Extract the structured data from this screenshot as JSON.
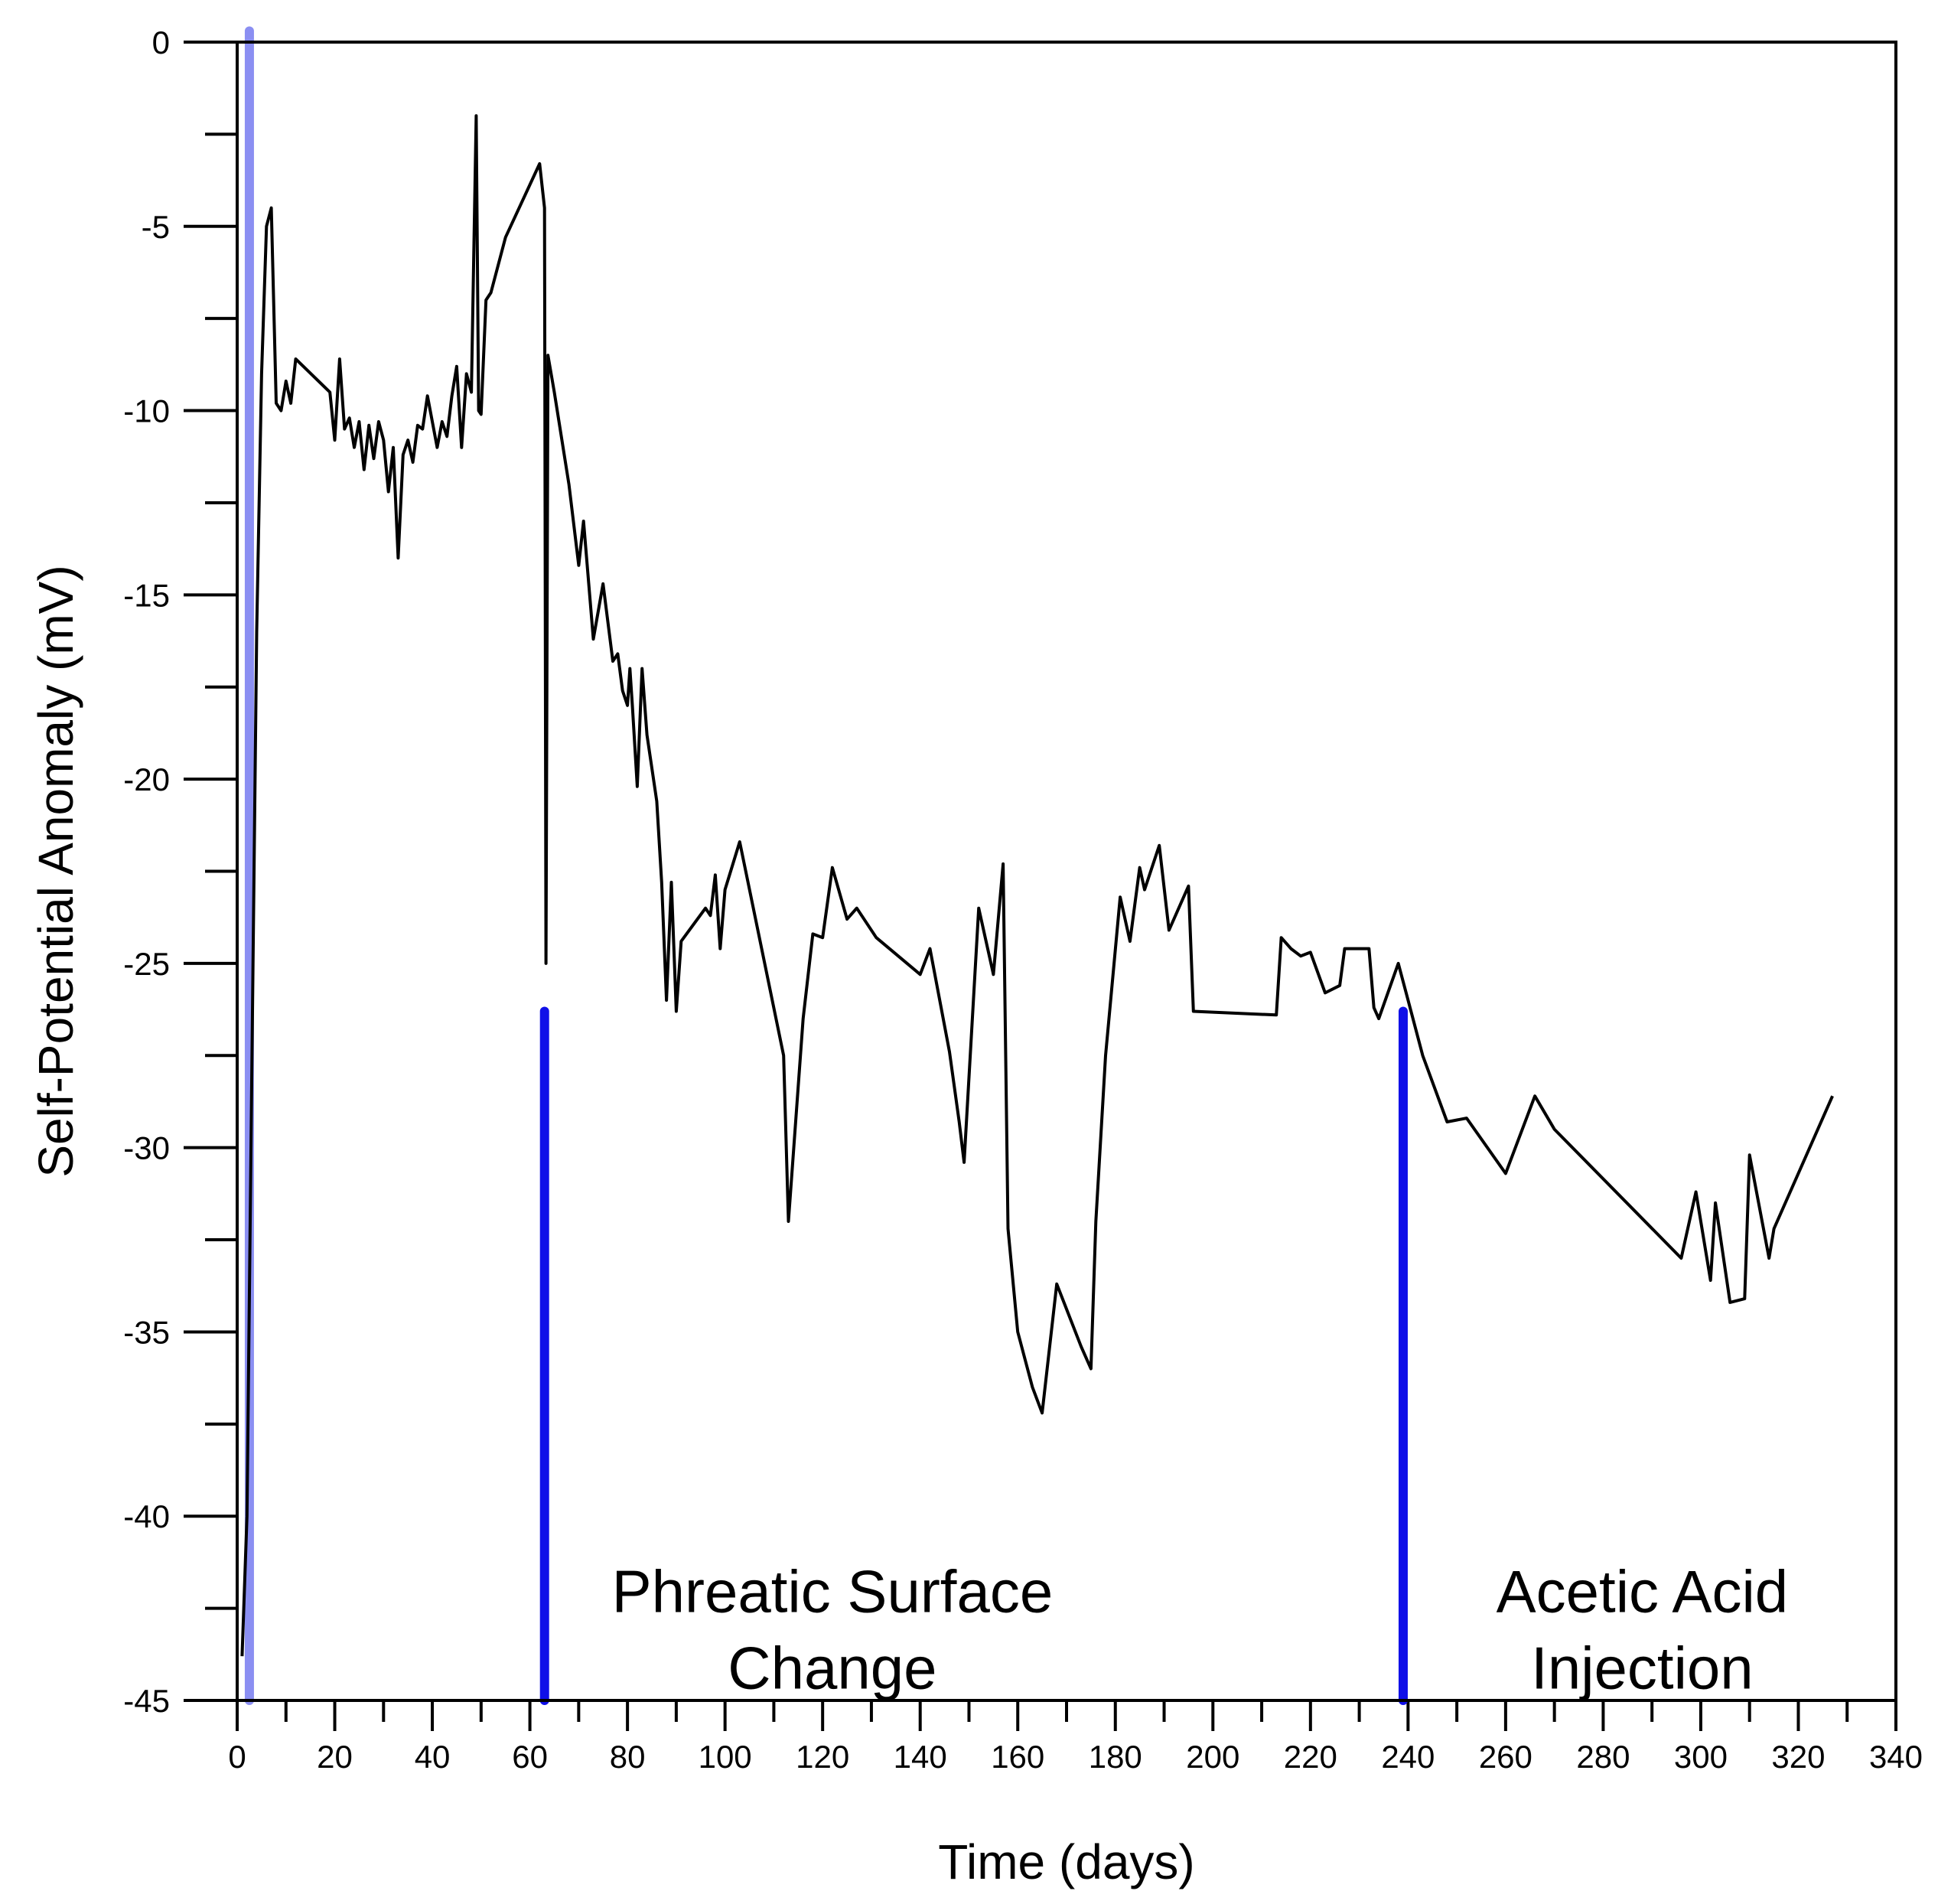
{
  "chart_data": {
    "type": "line",
    "title": "",
    "xlabel": "Time (days)",
    "ylabel": "Self-Potential Anomaly (mV)",
    "xlim": [
      0,
      340
    ],
    "ylim": [
      -45,
      0
    ],
    "x_ticks": [
      0,
      20,
      40,
      60,
      80,
      100,
      120,
      140,
      160,
      180,
      200,
      220,
      240,
      260,
      280,
      300,
      320,
      340
    ],
    "x_tick_labels": [
      "0",
      "20",
      "40",
      "60",
      "80",
      "100",
      "120",
      "140",
      "160",
      "180",
      "200",
      "220",
      "240",
      "260",
      "280",
      "300",
      "320",
      "340"
    ],
    "y_ticks": [
      0,
      -5,
      -10,
      -15,
      -20,
      -25,
      -30,
      -35,
      -40,
      -45
    ],
    "y_tick_labels": [
      "0",
      "-5",
      "-10",
      "-15",
      "-20",
      "-25",
      "-30",
      "-35",
      "-40",
      "-45"
    ],
    "grid": false,
    "series": [
      {
        "color": "#000000",
        "points": [
          [
            1,
            -43.8
          ],
          [
            2,
            -40
          ],
          [
            3,
            -28
          ],
          [
            4,
            -16
          ],
          [
            5,
            -9
          ],
          [
            6,
            -5
          ],
          [
            7,
            -4.5
          ],
          [
            8,
            -9.8
          ],
          [
            9,
            -10
          ],
          [
            10,
            -9.2
          ],
          [
            11,
            -9.8
          ],
          [
            12,
            -8.6
          ],
          [
            19,
            -9.5
          ],
          [
            20,
            -10.8
          ],
          [
            21,
            -8.6
          ],
          [
            22,
            -10.5
          ],
          [
            23,
            -10.2
          ],
          [
            24,
            -11
          ],
          [
            25,
            -10.3
          ],
          [
            26,
            -11.6
          ],
          [
            27,
            -10.4
          ],
          [
            28,
            -11.3
          ],
          [
            29,
            -10.3
          ],
          [
            30,
            -10.8
          ],
          [
            31,
            -12.2
          ],
          [
            32,
            -11
          ],
          [
            33,
            -14
          ],
          [
            34,
            -11.2
          ],
          [
            35,
            -10.8
          ],
          [
            36,
            -11.4
          ],
          [
            37,
            -10.4
          ],
          [
            38,
            -10.5
          ],
          [
            39,
            -9.6
          ],
          [
            41,
            -11
          ],
          [
            42,
            -10.3
          ],
          [
            43,
            -10.7
          ],
          [
            44,
            -9.6
          ],
          [
            45,
            -8.8
          ],
          [
            46,
            -11
          ],
          [
            47,
            -9
          ],
          [
            48,
            -9.5
          ],
          [
            49,
            -2
          ],
          [
            49.5,
            -10
          ],
          [
            50,
            -10.1
          ],
          [
            51,
            -7
          ],
          [
            52,
            -6.8
          ],
          [
            55,
            -5.3
          ],
          [
            62,
            -3.3
          ],
          [
            63,
            -4.5
          ],
          [
            63.3,
            -25
          ],
          [
            63.7,
            -8.5
          ],
          [
            65,
            -9.5
          ],
          [
            68,
            -12
          ],
          [
            70,
            -14.2
          ],
          [
            71,
            -13
          ],
          [
            73,
            -16.2
          ],
          [
            75,
            -14.7
          ],
          [
            77,
            -16.8
          ],
          [
            78,
            -16.6
          ],
          [
            79,
            -17.6
          ],
          [
            80,
            -18
          ],
          [
            80.5,
            -17
          ],
          [
            81,
            -18
          ],
          [
            82,
            -20.2
          ],
          [
            83,
            -17
          ],
          [
            84,
            -18.8
          ],
          [
            86,
            -20.6
          ],
          [
            87,
            -22.8
          ],
          [
            88,
            -26
          ],
          [
            89,
            -22.8
          ],
          [
            90,
            -26.3
          ],
          [
            91,
            -24.4
          ],
          [
            96,
            -23.5
          ],
          [
            97,
            -23.7
          ],
          [
            98,
            -22.6
          ],
          [
            99,
            -24.6
          ],
          [
            100,
            -23
          ],
          [
            103,
            -21.7
          ],
          [
            112,
            -27.5
          ],
          [
            113,
            -32
          ],
          [
            116,
            -26.5
          ],
          [
            118,
            -24.2
          ],
          [
            120,
            -24.3
          ],
          [
            122,
            -22.4
          ],
          [
            125,
            -23.8
          ],
          [
            127,
            -23.5
          ],
          [
            131,
            -24.3
          ],
          [
            140,
            -25.3
          ],
          [
            142,
            -24.6
          ],
          [
            146,
            -27.4
          ],
          [
            148,
            -29.3
          ],
          [
            149,
            -30.4
          ],
          [
            152,
            -23.5
          ],
          [
            155,
            -25.3
          ],
          [
            157,
            -22.3
          ],
          [
            158,
            -32.2
          ],
          [
            160,
            -35
          ],
          [
            163,
            -36.5
          ],
          [
            165,
            -37.2
          ],
          [
            168,
            -33.7
          ],
          [
            173,
            -35.4
          ],
          [
            175,
            -36
          ],
          [
            176,
            -32
          ],
          [
            178,
            -27.5
          ],
          [
            181,
            -23.2
          ],
          [
            183,
            -24.4
          ],
          [
            185,
            -22.4
          ],
          [
            186,
            -23
          ],
          [
            189,
            -21.8
          ],
          [
            191,
            -24.1
          ],
          [
            195,
            -22.9
          ],
          [
            196,
            -26.3
          ],
          [
            213,
            -26.4
          ],
          [
            214,
            -24.3
          ],
          [
            216,
            -24.6
          ],
          [
            218,
            -24.8
          ],
          [
            220,
            -24.7
          ],
          [
            223,
            -25.8
          ],
          [
            226,
            -25.6
          ],
          [
            227,
            -24.6
          ],
          [
            230,
            -24.6
          ],
          [
            232,
            -24.6
          ],
          [
            233,
            -26.2
          ],
          [
            234,
            -26.5
          ],
          [
            238,
            -25
          ],
          [
            240,
            -26
          ],
          [
            243,
            -27.5
          ],
          [
            248,
            -29.3
          ],
          [
            252,
            -29.2
          ],
          [
            260,
            -30.7
          ],
          [
            266,
            -28.6
          ],
          [
            270,
            -29.5
          ],
          [
            296,
            -33
          ],
          [
            299,
            -31.2
          ],
          [
            302,
            -33.6
          ],
          [
            303,
            -31.5
          ],
          [
            306,
            -34.2
          ],
          [
            309,
            -34.1
          ],
          [
            310,
            -30.2
          ],
          [
            314,
            -33
          ],
          [
            315,
            -32.2
          ],
          [
            327,
            -28.6
          ]
        ]
      }
    ],
    "markers": [
      {
        "x": 2.5,
        "y_top": 0.3,
        "y_bottom": -45,
        "color": "#8b8ff2"
      },
      {
        "x": 63,
        "y_top": -26.3,
        "y_bottom": -45,
        "color": "#1010e8"
      },
      {
        "x": 239,
        "y_top": -26.3,
        "y_bottom": -45,
        "color": "#1010e8"
      }
    ],
    "annotations": [
      {
        "lines": [
          "Phreatic Surface",
          "Change"
        ],
        "x": 122,
        "y": -42.6
      },
      {
        "lines": [
          "Acetic Acid",
          "Injection"
        ],
        "x": 288,
        "y": -42.6
      }
    ]
  }
}
